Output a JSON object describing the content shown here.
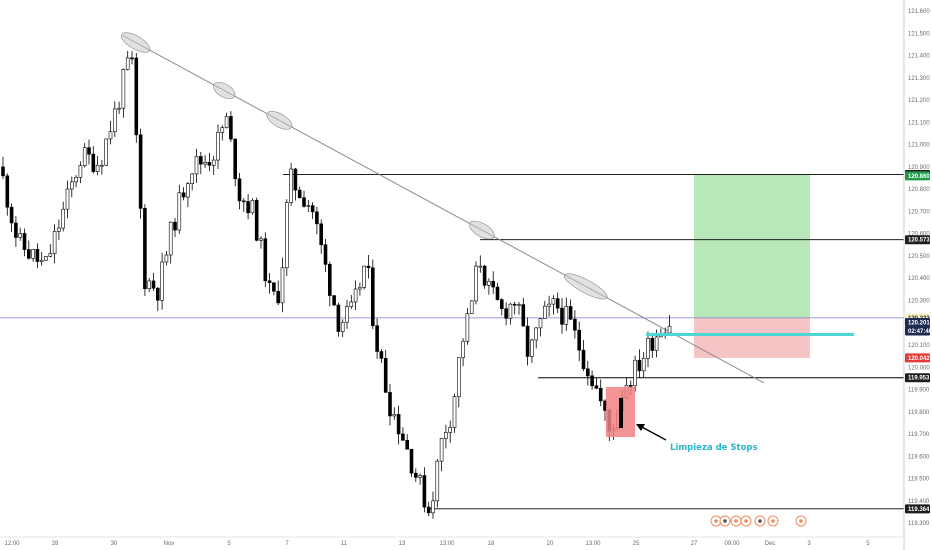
{
  "chart_data": {
    "type": "candlestick",
    "x_ticks": [
      "12:00",
      "28",
      "30",
      "Nov",
      "5",
      "7",
      "11",
      "13",
      "13:00",
      "18",
      "20",
      "13:00",
      "25",
      "27",
      "09:00",
      "Dec",
      "3",
      "5"
    ],
    "y_ticks": [
      "121.600",
      "121.500",
      "121.400",
      "121.300",
      "121.200",
      "121.100",
      "121.000",
      "120.900",
      "120.800",
      "120.700",
      "120.600",
      "120.500",
      "120.400",
      "120.300",
      "120.200",
      "120.100",
      "120.000",
      "119.900",
      "119.800",
      "119.700",
      "119.600",
      "119.500",
      "119.400",
      "119.300"
    ],
    "ylim": [
      119.26,
      121.65
    ],
    "price_tags": [
      {
        "label": "120.866",
        "value": 120.866,
        "style": "dark"
      },
      {
        "label": "120.860",
        "value": 120.86,
        "style": "green"
      },
      {
        "label": "120.573",
        "value": 120.573,
        "style": "dark"
      },
      {
        "label": "120.222",
        "value": 120.222,
        "style": "light-yellow"
      },
      {
        "label": "120.201",
        "value": 120.201,
        "style": "navy"
      },
      {
        "label": "02:47:48",
        "value": 120.163,
        "style": "navy"
      },
      {
        "label": "120.042",
        "value": 120.042,
        "style": "red"
      },
      {
        "label": "119.953",
        "value": 119.953,
        "style": "dark"
      },
      {
        "label": "119.364",
        "value": 119.364,
        "style": "dark"
      }
    ],
    "horizontal_levels": [
      120.866,
      120.573,
      119.953,
      119.364
    ],
    "current_price_line": 120.222,
    "trendline": {
      "from": [
        0.136,
        121.49
      ],
      "to": [
        0.845,
        119.93
      ]
    },
    "trade_setup": {
      "entry": 120.222,
      "target": 120.866,
      "stop": 120.042
    },
    "annotation": "Limpieza de Stops",
    "colors": {
      "bull": "#ffffff",
      "bear": "#000000",
      "outline": "#000000",
      "level": "#000000",
      "trend": "#8a8a8a",
      "price_line": "#7b7bd6",
      "profit": "#b8e7b9",
      "loss": "#f7c4c5",
      "highlight": "#f28080",
      "cyan": "#4dd6d6",
      "annotation": "#2bb5c9"
    }
  }
}
